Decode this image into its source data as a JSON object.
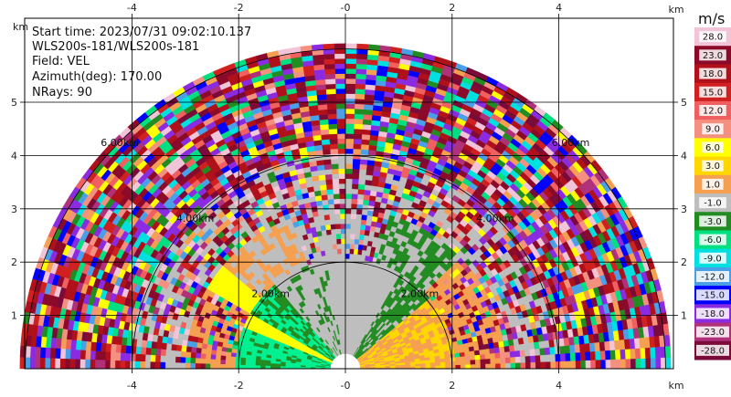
{
  "info": {
    "start_time": "Start time: 2023/07/31 09:02:10.137",
    "site": "WLS200s-181/WLS200s-181",
    "field": "Field: VEL",
    "azimuth": "Azimuth(deg): 170.00",
    "nrays": "NRays: 90"
  },
  "axes": {
    "x_unit": "km",
    "y_unit": "km",
    "x_ticks": [
      "-4",
      "-2",
      "-0",
      "2",
      "4"
    ],
    "x_tick_values": [
      -4,
      -2,
      0,
      2,
      4
    ],
    "y_ticks": [
      "1",
      "2",
      "3",
      "4",
      "5"
    ],
    "y_tick_values": [
      1,
      2,
      3,
      4,
      5
    ],
    "x_range": [
      -6.0,
      6.0
    ],
    "y_range": [
      0,
      6.0
    ]
  },
  "rings": {
    "labels": [
      "2.00km",
      "4.00km",
      "6.00km"
    ],
    "values_km": [
      2,
      4,
      6
    ]
  },
  "colorbar": {
    "unit": "m/s",
    "labels": [
      "28.0",
      "23.0",
      "18.0",
      "15.0",
      "12.0",
      "9.0",
      "6.0",
      "3.0",
      "1.0",
      "-1.0",
      "-3.0",
      "-6.0",
      "-9.0",
      "-12.0",
      "-15.0",
      "-18.0",
      "-23.0",
      "-28.0"
    ],
    "colors": [
      "#f2c4d8",
      "#8b0a2a",
      "#b0101a",
      "#d02020",
      "#f06060",
      "#f49080",
      "#ffff00",
      "#ffd700",
      "#f5a050",
      "#bebebe",
      "#228b22",
      "#00e080",
      "#00e0e0",
      "#4aa0e8",
      "#0000ff",
      "#8a2be2",
      "#b0307a",
      "#7a0a3a"
    ]
  },
  "velocity_palette": {
    "near_grey": "#bebebe",
    "green": "#228b22",
    "mint": "#00f090",
    "orange": "#f5a050",
    "gold": "#ffd700",
    "yellow": "#ffff00"
  }
}
